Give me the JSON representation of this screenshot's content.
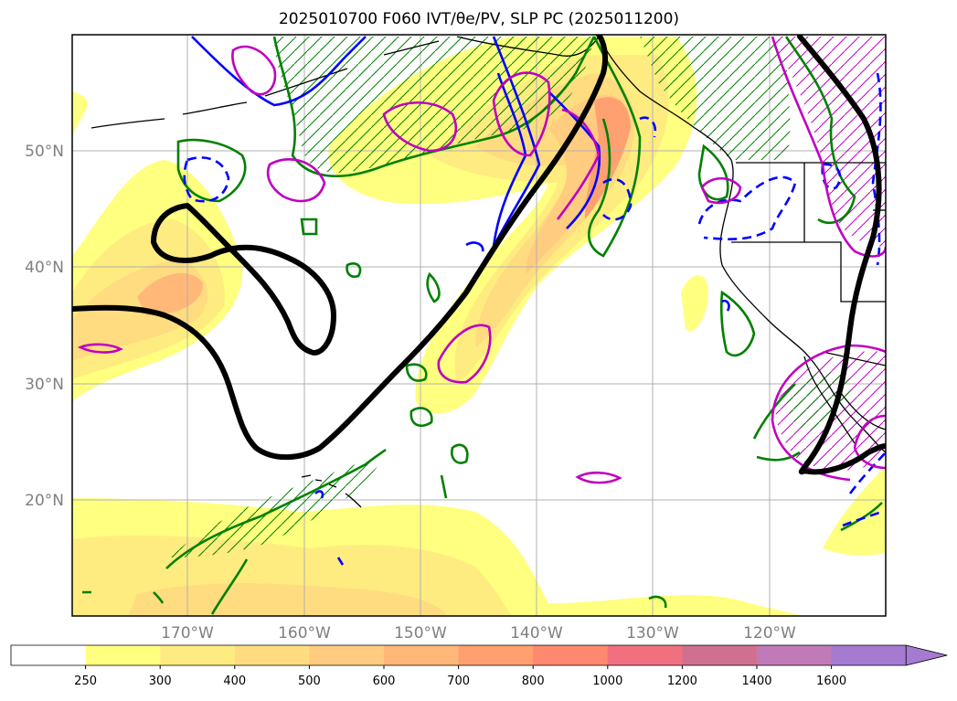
{
  "title": "2025010700 F060 IVT/θe/PV, SLP PC (2025011200)",
  "map": {
    "lon_range": [
      -180,
      -110
    ],
    "lat_range": [
      10,
      60
    ],
    "lon_ticks": [
      -170,
      -160,
      -150,
      -140,
      -130,
      -120
    ],
    "lon_labels": [
      "170°W",
      "160°W",
      "150°W",
      "140°W",
      "130°W",
      "120°W"
    ],
    "lat_ticks": [
      20,
      30,
      40,
      50
    ],
    "lat_labels": [
      "20°N",
      "30°N",
      "40°N",
      "50°N"
    ],
    "grid": true
  },
  "chart_data": {
    "type": "heatmap",
    "title": "2025010700 F060 IVT/θe/PV, SLP PC (2025011200)",
    "variable": "IVT",
    "levels": [
      250,
      300,
      400,
      500,
      600,
      700,
      800,
      1000,
      1200,
      1400,
      1600
    ],
    "level_labels": [
      "250",
      "300",
      "400",
      "500",
      "600",
      "700",
      "800",
      "1000",
      "1200",
      "1400",
      "1600"
    ],
    "level_colors": [
      "#ffffff",
      "#ffff80",
      "#ffec80",
      "#ffdc80",
      "#ffcc80",
      "#ffb878",
      "#ffa070",
      "#ff8870",
      "#f07080",
      "#d07090",
      "#c07ab8",
      "#a57ad0"
    ],
    "extend": "max",
    "colors": {
      "land_outline": "#000000",
      "green_contours": "#008000",
      "blue_contours": "#0000ff",
      "magenta_contours": "#c000c0",
      "slp_pc": "#000000"
    }
  }
}
